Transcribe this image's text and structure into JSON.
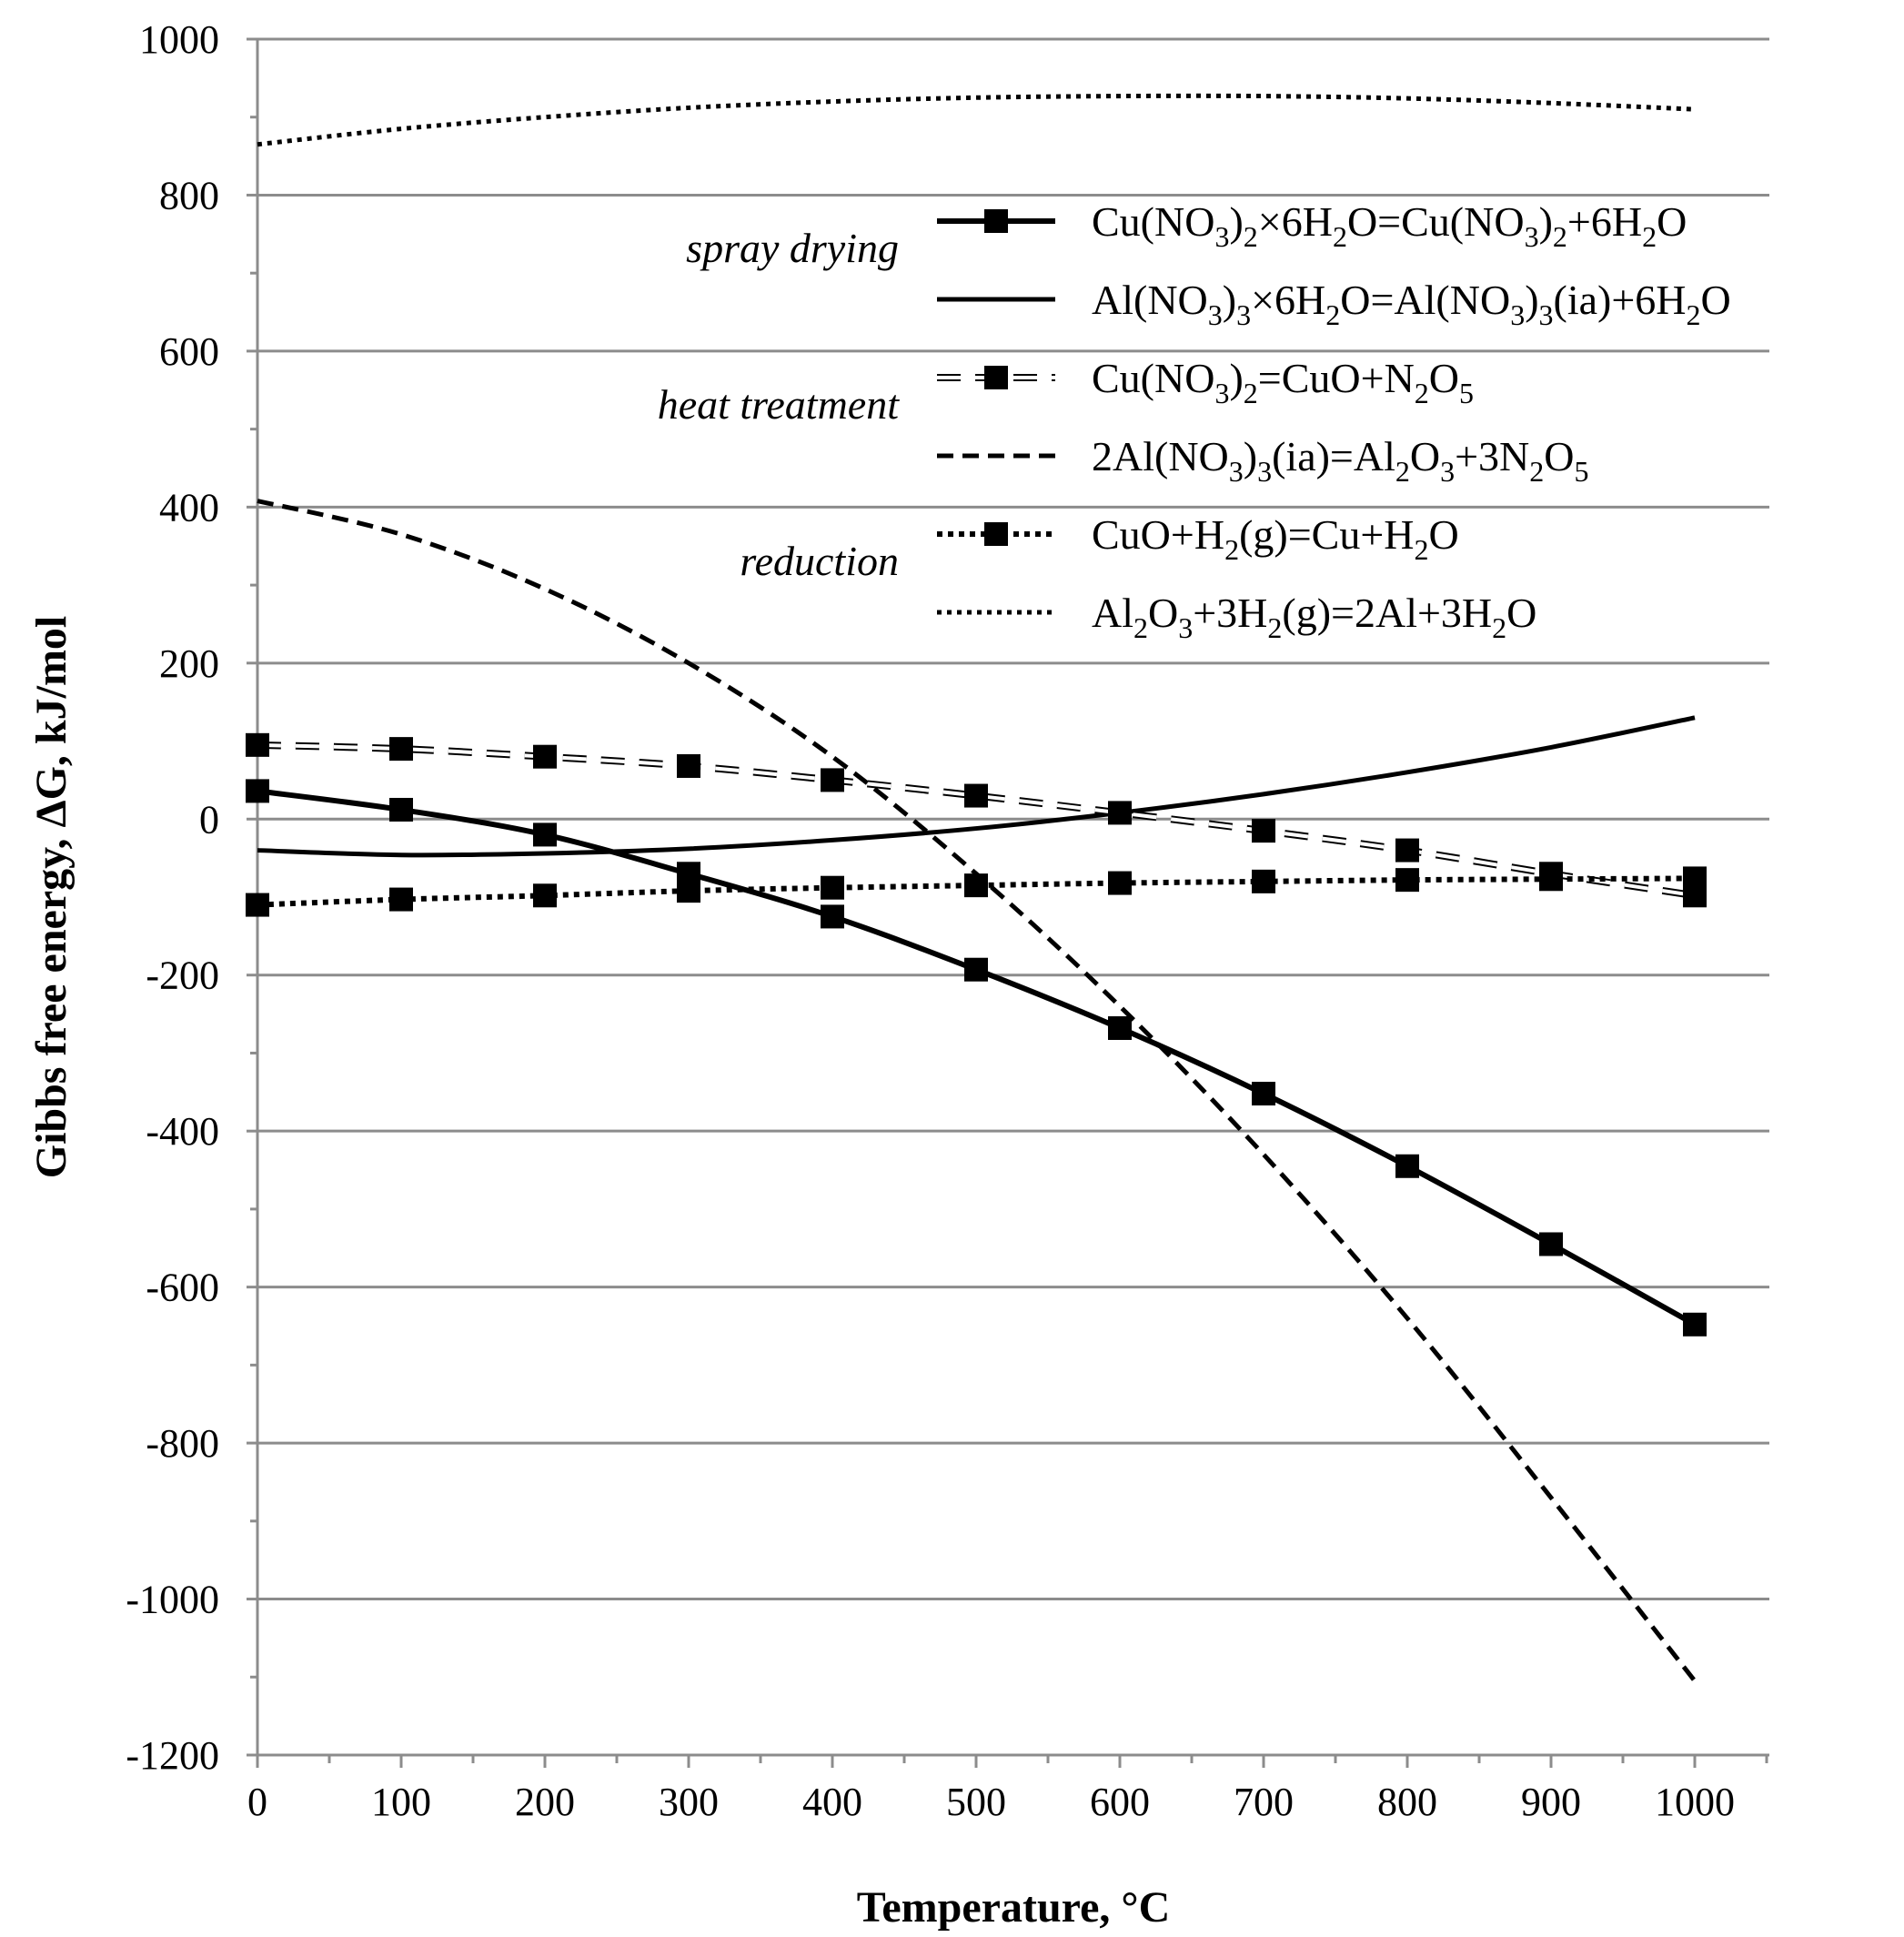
{
  "chart_data": {
    "type": "line",
    "title": "",
    "xlabel": "Temperature, °C",
    "ylabel": "Gibbs free energy, ΔG, kJ/mol",
    "xlim": [
      0,
      1050
    ],
    "ylim": [
      -1200,
      1000
    ],
    "x_ticks": [
      0,
      100,
      200,
      300,
      400,
      500,
      600,
      700,
      800,
      900,
      1000
    ],
    "y_ticks": [
      -1200,
      -1000,
      -800,
      -600,
      -400,
      -200,
      0,
      200,
      400,
      600,
      800,
      1000
    ],
    "grid": true,
    "annotations": [
      {
        "text": "spray drying",
        "near_series": 0
      },
      {
        "text": "heat treatment",
        "near_series": 2
      },
      {
        "text": "reduction",
        "near_series": 4
      }
    ],
    "series": [
      {
        "name": "Cu(NO₃)₂×6H₂O=Cu(NO₃)₂+6H₂O",
        "legend_parts": [
          [
            "Cu(NO",
            ""
          ],
          [
            "3",
            "sub"
          ],
          [
            ")",
            ""
          ],
          [
            "2",
            "sub"
          ],
          [
            "×6H",
            ""
          ],
          [
            "2",
            "sub"
          ],
          [
            "O=Cu(NO",
            ""
          ],
          [
            "3",
            "sub"
          ],
          [
            ")",
            ""
          ],
          [
            "2",
            "sub"
          ],
          [
            "+6H",
            ""
          ],
          [
            "2",
            "sub"
          ],
          [
            "O",
            ""
          ]
        ],
        "style": "solid-markers",
        "x": [
          0,
          100,
          200,
          300,
          400,
          500,
          600,
          700,
          800,
          900,
          1000
        ],
        "y": [
          36,
          12,
          -20,
          -70,
          -125,
          -193,
          -268,
          -352,
          -445,
          -545,
          -648
        ]
      },
      {
        "name": "Al(NO₃)₃×6H₂O=Al(NO₃)₃(ia)+6H₂O",
        "legend_parts": [
          [
            "Al(NO",
            ""
          ],
          [
            "3",
            "sub"
          ],
          [
            ")",
            ""
          ],
          [
            "3",
            "sub"
          ],
          [
            "×6H",
            ""
          ],
          [
            "2",
            "sub"
          ],
          [
            "O=Al(NO",
            ""
          ],
          [
            "3",
            "sub"
          ],
          [
            ")",
            ""
          ],
          [
            "3",
            "sub"
          ],
          [
            "(ia)+6H",
            ""
          ],
          [
            "2",
            "sub"
          ],
          [
            "O",
            ""
          ]
        ],
        "style": "solid",
        "x": [
          0,
          100,
          200,
          300,
          400,
          500,
          600,
          700,
          800,
          900,
          1000
        ],
        "y": [
          -40,
          -46,
          -44,
          -38,
          -27,
          -12,
          8,
          32,
          60,
          92,
          130
        ]
      },
      {
        "name": "Cu(NO₃)₂=CuO+N₂O₅",
        "legend_parts": [
          [
            "Cu(NO",
            ""
          ],
          [
            "3",
            "sub"
          ],
          [
            ")",
            ""
          ],
          [
            "2",
            "sub"
          ],
          [
            "=CuO+N",
            ""
          ],
          [
            "2",
            "sub"
          ],
          [
            "O",
            ""
          ],
          [
            "5",
            "sub"
          ]
        ],
        "style": "hollow-dash-markers",
        "x": [
          0,
          100,
          200,
          300,
          400,
          500,
          600,
          700,
          800,
          900,
          1000
        ],
        "y": [
          95,
          90,
          80,
          68,
          50,
          30,
          8,
          -15,
          -40,
          -70,
          -98
        ]
      },
      {
        "name": "2Al(NO₃)₃(ia)=Al₂O₃+3N₂O₅",
        "legend_parts": [
          [
            "2Al(NO",
            ""
          ],
          [
            "3",
            "sub"
          ],
          [
            ")",
            ""
          ],
          [
            "3",
            "sub"
          ],
          [
            "(ia)=Al",
            ""
          ],
          [
            "2",
            "sub"
          ],
          [
            "O",
            ""
          ],
          [
            "3",
            "sub"
          ],
          [
            "+3N",
            ""
          ],
          [
            "2",
            "sub"
          ],
          [
            "O",
            ""
          ],
          [
            "5",
            "sub"
          ]
        ],
        "style": "dashed",
        "x": [
          0,
          100,
          200,
          300,
          400,
          500,
          600,
          700,
          800,
          900,
          1000
        ],
        "y": [
          408,
          365,
          295,
          200,
          80,
          -70,
          -240,
          -430,
          -640,
          -870,
          -1105
        ]
      },
      {
        "name": "CuO+H₂(g)=Cu+H₂O",
        "legend_parts": [
          [
            "CuO+H",
            ""
          ],
          [
            "2",
            "sub"
          ],
          [
            "(g)=Cu+H",
            ""
          ],
          [
            "2",
            "sub"
          ],
          [
            "O",
            ""
          ]
        ],
        "style": "dotted-markers",
        "x": [
          0,
          100,
          200,
          300,
          400,
          500,
          600,
          700,
          800,
          900,
          1000
        ],
        "y": [
          -110,
          -103,
          -98,
          -92,
          -88,
          -85,
          -82,
          -80,
          -78,
          -77,
          -76
        ]
      },
      {
        "name": "Al₂O₃+3H₂(g)=2Al+3H₂O",
        "legend_parts": [
          [
            "Al",
            ""
          ],
          [
            "2",
            "sub"
          ],
          [
            "O",
            ""
          ],
          [
            "3",
            "sub"
          ],
          [
            "+3H",
            ""
          ],
          [
            "2",
            "sub"
          ],
          [
            "(g)=2Al+3H",
            ""
          ],
          [
            "2",
            "sub"
          ],
          [
            "O",
            ""
          ]
        ],
        "style": "dotted",
        "x": [
          0,
          100,
          200,
          300,
          400,
          500,
          600,
          700,
          800,
          900,
          1000
        ],
        "y": [
          865,
          885,
          900,
          912,
          920,
          925,
          927,
          927,
          924,
          918,
          910
        ]
      }
    ]
  }
}
